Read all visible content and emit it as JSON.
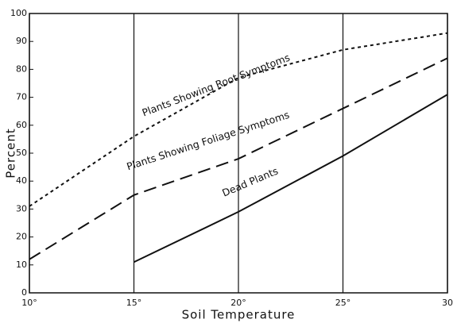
{
  "chart_data": {
    "type": "line",
    "x_label": "Soil Temperature",
    "y_label": "Percent",
    "x": [
      10,
      15,
      20,
      25,
      30
    ],
    "series": [
      {
        "name": "Plants Showing Root Symptoms",
        "color": "#111111",
        "line_style": "dotted",
        "values": [
          31,
          56,
          77,
          87,
          93
        ]
      },
      {
        "name": "Plants Showing Foliage Symptoms",
        "color": "#111111",
        "line_style": "dashed",
        "values": [
          12,
          35,
          48,
          66,
          84
        ]
      },
      {
        "name": "Dead Plants",
        "color": "#111111",
        "line_style": "solid",
        "values": [
          null,
          11,
          29,
          49,
          71
        ]
      }
    ],
    "xlim": [
      10,
      30
    ],
    "xticks": [
      {
        "value": 10,
        "label": "10°"
      },
      {
        "value": 15,
        "label": "15°"
      },
      {
        "value": 20,
        "label": "20°"
      },
      {
        "value": 25,
        "label": "25°"
      },
      30
    ],
    "ylim": [
      0,
      100
    ],
    "yticks": [
      0,
      10,
      20,
      30,
      40,
      50,
      60,
      70,
      80,
      90,
      100
    ],
    "grid": "x"
  }
}
